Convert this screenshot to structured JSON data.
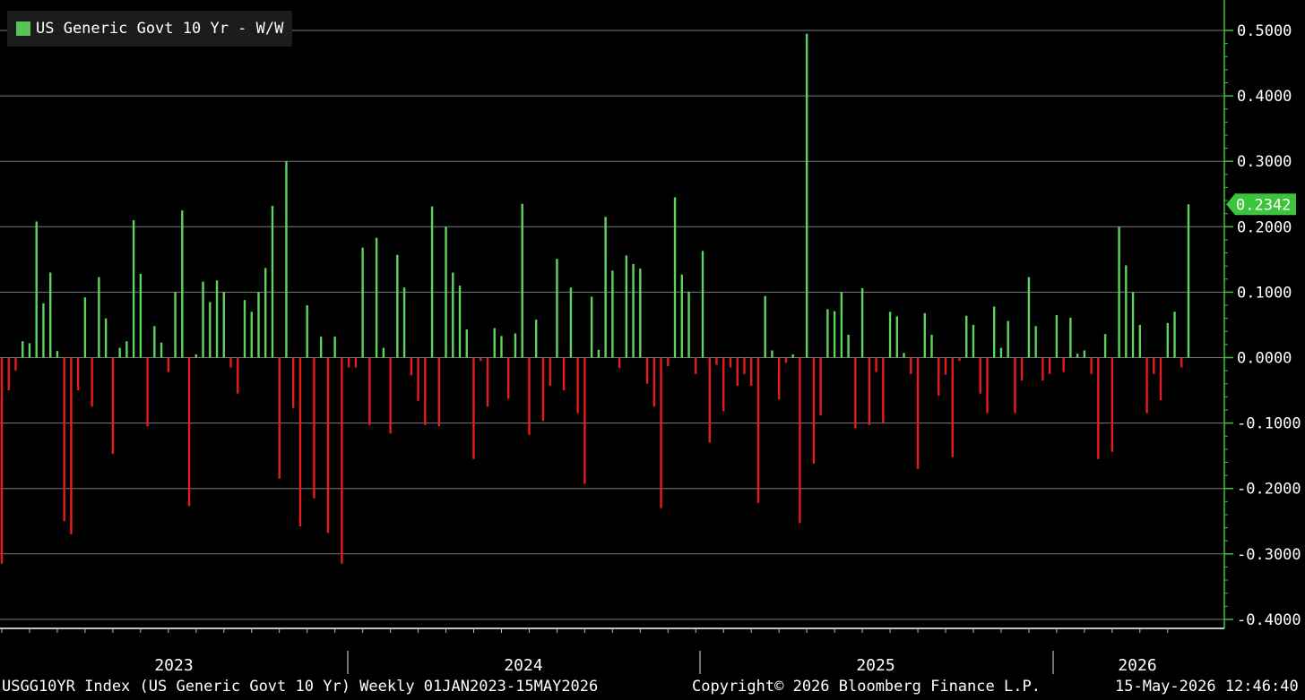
{
  "legend": {
    "label": "US Generic Govt 10 Yr - W/W",
    "color": "#55c655"
  },
  "footer": {
    "left": "USGG10YR Index (US Generic Govt 10 Yr) Weekly 01JAN2023-15MAY2026",
    "center": "Copyright© 2026 Bloomberg Finance L.P.",
    "right": "15-May-2026 12:46:40"
  },
  "colors": {
    "positive": "#5fd35f",
    "negative": "#e81c1c",
    "axis": "#3cc43c",
    "grid": "#7a7a7a",
    "background": "#000000"
  },
  "chart_data": {
    "type": "bar",
    "title": "",
    "xlabel": "",
    "ylabel": "",
    "ylim": [
      -0.4,
      0.5
    ],
    "grid": true,
    "legend_position": "top-left",
    "y_ticks": [
      "0.5000",
      "0.4000",
      "0.3000",
      "0.2000",
      "0.1000",
      "0.0000",
      "-0.1000",
      "-0.2000",
      "-0.3000",
      "-0.4000"
    ],
    "y_tick_values": [
      0.5,
      0.4,
      0.3,
      0.2,
      0.1,
      0.0,
      -0.1,
      -0.2,
      -0.3,
      -0.4
    ],
    "x_year_labels": [
      "2023",
      "2024",
      "2025",
      "2026"
    ],
    "last_value_label": "0.2342",
    "last_value": 0.2342,
    "series": [
      {
        "name": "US Generic Govt 10 Yr - W/W",
        "values": [
          -0.315,
          -0.05,
          -0.02,
          0.025,
          0.022,
          0.208,
          0.083,
          0.13,
          0.01,
          -0.25,
          -0.27,
          -0.05,
          0.092,
          -0.075,
          0.123,
          0.06,
          -0.147,
          0.015,
          0.025,
          0.21,
          0.128,
          -0.105,
          0.048,
          0.023,
          -0.022,
          0.1,
          0.225,
          -0.227,
          0.005,
          0.116,
          0.085,
          0.118,
          0.1,
          -0.015,
          -0.055,
          0.088,
          0.07,
          0.1,
          0.137,
          0.232,
          -0.185,
          0.3,
          -0.077,
          -0.258,
          0.08,
          -0.215,
          0.032,
          -0.268,
          0.032,
          -0.315,
          -0.015,
          -0.015,
          0.168,
          -0.103,
          0.183,
          0.015,
          -0.116,
          0.157,
          0.107,
          -0.027,
          -0.066,
          -0.103,
          0.231,
          -0.105,
          0.2,
          0.13,
          0.11,
          0.043,
          -0.155,
          -0.005,
          -0.075,
          0.045,
          0.033,
          -0.063,
          0.037,
          0.235,
          -0.118,
          0.058,
          -0.097,
          -0.043,
          0.151,
          -0.05,
          0.107,
          -0.085,
          -0.193,
          0.093,
          0.012,
          0.215,
          0.133,
          -0.016,
          0.156,
          0.143,
          0.136,
          -0.04,
          -0.075,
          -0.23,
          -0.013,
          0.245,
          0.127,
          0.101,
          -0.025,
          0.163,
          -0.13,
          -0.011,
          -0.082,
          -0.015,
          -0.043,
          -0.025,
          -0.043,
          -0.222,
          0.094,
          0.011,
          -0.064,
          -0.008,
          0.005,
          -0.253,
          0.495,
          -0.162,
          -0.088,
          0.074,
          0.071,
          0.1,
          0.035,
          -0.108,
          0.106,
          -0.103,
          -0.022,
          -0.1,
          0.07,
          0.063,
          0.007,
          -0.025,
          -0.17,
          0.068,
          0.035,
          -0.058,
          -0.026,
          -0.152,
          -0.005,
          0.064,
          0.05,
          -0.055,
          -0.085,
          0.078,
          0.015,
          0.056,
          -0.085,
          -0.035,
          0.123,
          0.048,
          -0.035,
          -0.025,
          0.065,
          -0.022,
          0.061,
          0.006,
          0.011,
          -0.025,
          -0.155,
          0.036,
          -0.144,
          0.2,
          0.141,
          0.1,
          0.05,
          -0.085,
          -0.025,
          -0.065,
          0.053,
          0.07,
          -0.015,
          0.2342
        ]
      }
    ]
  }
}
